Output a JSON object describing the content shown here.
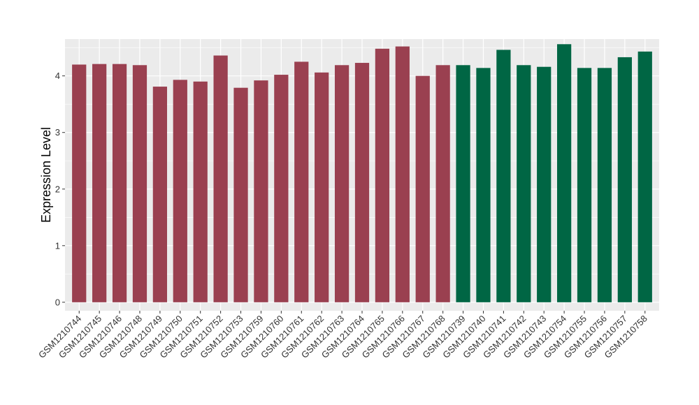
{
  "chart_data": {
    "type": "bar",
    "title": "",
    "xlabel": "",
    "ylabel": "Expression Level",
    "ylim": [
      -0.15,
      4.65
    ],
    "yticks": [
      0,
      1,
      2,
      3,
      4
    ],
    "grid": true,
    "legend": "none",
    "panel_background": "#ebebeb",
    "gridline_color": "#ffffff",
    "categories": [
      "GSM1210744",
      "GSM1210745",
      "GSM1210746",
      "GSM1210748",
      "GSM1210749",
      "GSM1210750",
      "GSM1210751",
      "GSM1210752",
      "GSM1210753",
      "GSM1210759",
      "GSM1210760",
      "GSM1210761",
      "GSM1210762",
      "GSM1210763",
      "GSM1210764",
      "GSM1210765",
      "GSM1210766",
      "GSM1210767",
      "GSM1210768",
      "GSM1210739",
      "GSM1210740",
      "GSM1210741",
      "GSM1210742",
      "GSM1210743",
      "GSM1210754",
      "GSM1210755",
      "GSM1210756",
      "GSM1210757",
      "GSM1210758"
    ],
    "values": [
      4.2,
      4.21,
      4.21,
      4.19,
      3.81,
      3.93,
      3.9,
      4.36,
      3.79,
      3.92,
      4.02,
      4.25,
      4.06,
      4.19,
      4.23,
      4.48,
      4.52,
      4.0,
      4.19,
      4.19,
      4.14,
      4.46,
      4.19,
      4.16,
      4.56,
      4.14,
      4.14,
      4.33,
      4.43
    ],
    "bar_colors": [
      "#9a4050",
      "#9a4050",
      "#9a4050",
      "#9a4050",
      "#9a4050",
      "#9a4050",
      "#9a4050",
      "#9a4050",
      "#9a4050",
      "#9a4050",
      "#9a4050",
      "#9a4050",
      "#9a4050",
      "#9a4050",
      "#9a4050",
      "#9a4050",
      "#9a4050",
      "#9a4050",
      "#9a4050",
      "#006644",
      "#006644",
      "#006644",
      "#006644",
      "#006644",
      "#006644",
      "#006644",
      "#006644",
      "#006644",
      "#006644"
    ]
  }
}
